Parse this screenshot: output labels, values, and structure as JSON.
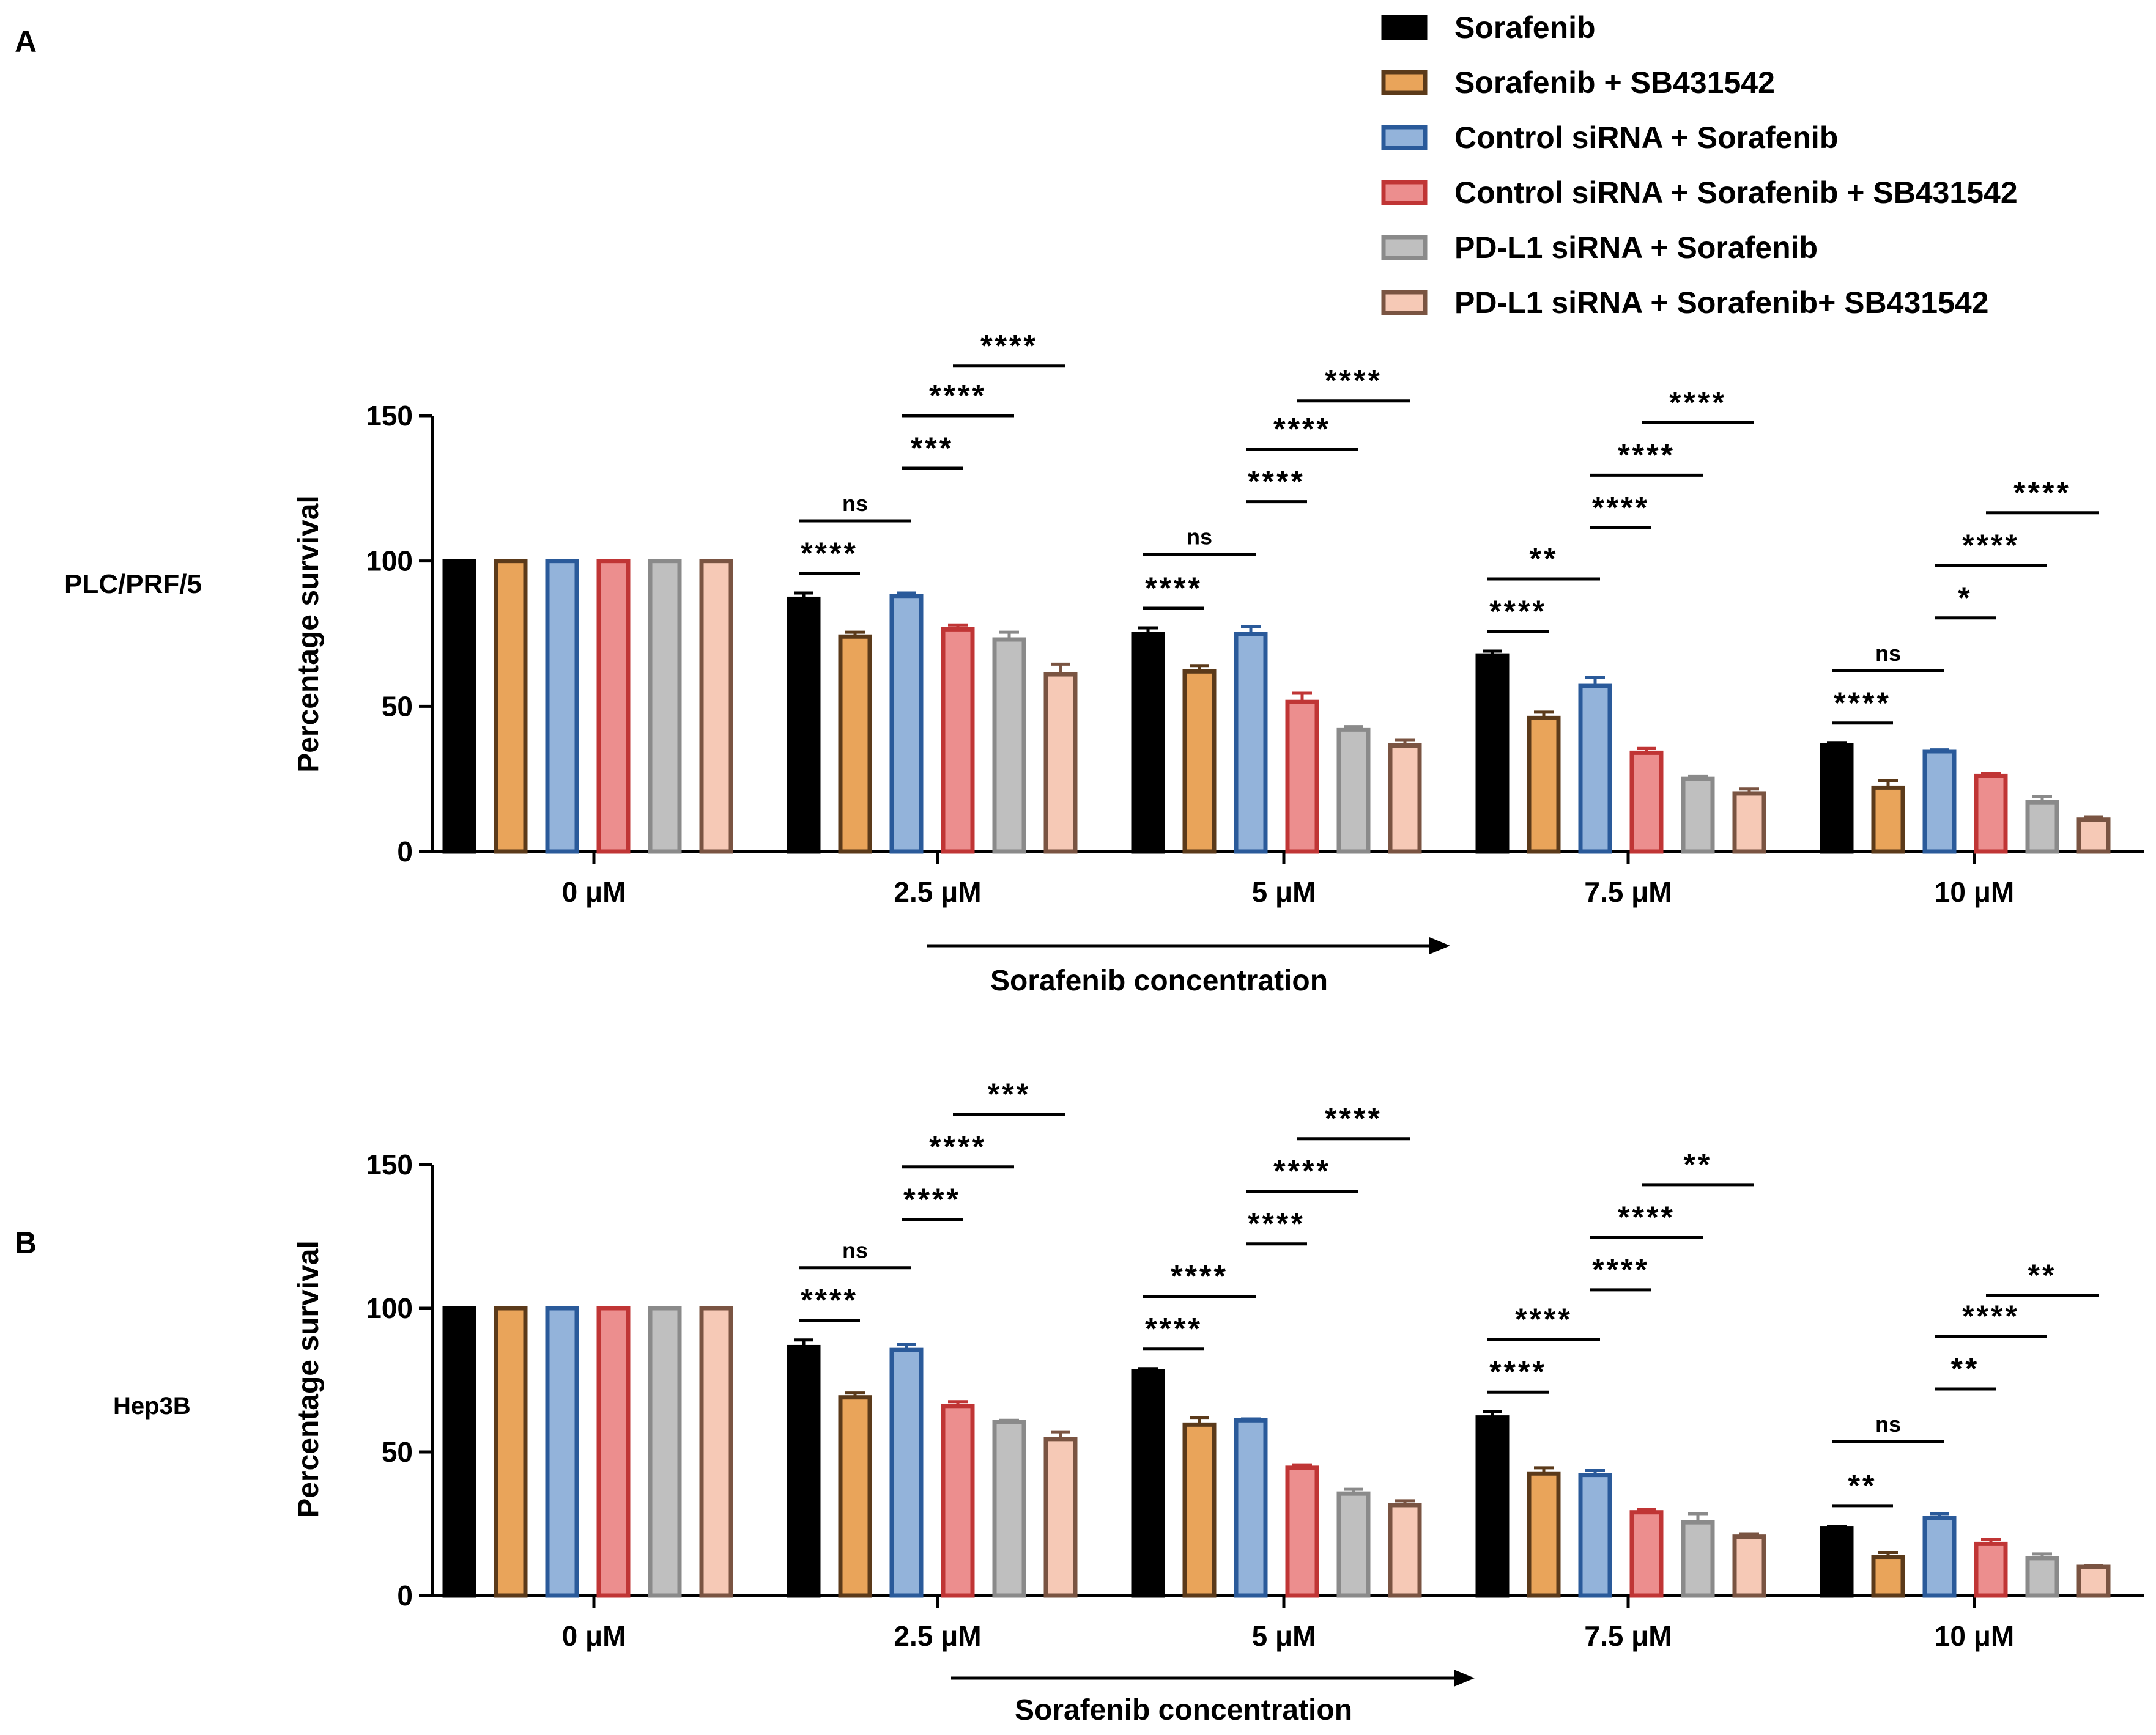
{
  "legend": [
    {
      "label": "Sorafenib",
      "fill": "#000000",
      "stroke": "#000000"
    },
    {
      "label": "Sorafenib + SB431542",
      "fill": "#E9A45A",
      "stroke": "#5b3a1a"
    },
    {
      "label": "Control siRNA + Sorafenib",
      "fill": "#93B3DA",
      "stroke": "#2a5a9a"
    },
    {
      "label": "Control siRNA + Sorafenib + SB431542",
      "fill": "#EC8E8E",
      "stroke": "#c03535"
    },
    {
      "label": "PD-L1 siRNA + Sorafenib",
      "fill": "#BFBFBF",
      "stroke": "#8a8a8a"
    },
    {
      "label": "PD-L1 siRNA + Sorafenib+ SB431542",
      "fill": "#F6C9B6",
      "stroke": "#7a5442"
    }
  ],
  "chart_data": [
    {
      "type": "bar",
      "panel_label": "A",
      "cell_line": "PLC/PRF/5",
      "ylabel": "Percentage survival",
      "xlabel": "Sorafenib concentration",
      "categories": [
        "0 μM",
        "2.5 μM",
        "5 μM",
        "7.5 μM",
        "10 μM"
      ],
      "ylim": [
        0,
        150
      ],
      "yticks": [
        "0",
        "50",
        "100",
        "150"
      ],
      "series": [
        {
          "values": [
            100,
            87,
            75,
            67.5,
            36.5
          ],
          "errors": [
            0,
            2,
            2,
            1.5,
            1
          ]
        },
        {
          "values": [
            100,
            74,
            62,
            46,
            22
          ],
          "errors": [
            0,
            1.5,
            2,
            2,
            2.5
          ]
        },
        {
          "values": [
            100,
            88,
            75,
            57,
            34.5
          ],
          "errors": [
            0,
            1,
            2.5,
            3,
            0.5
          ]
        },
        {
          "values": [
            100,
            76.5,
            51.5,
            34,
            26
          ],
          "errors": [
            0,
            1.5,
            3,
            1.5,
            1
          ]
        },
        {
          "values": [
            100,
            73,
            42,
            25,
            17
          ],
          "errors": [
            0,
            2.5,
            1,
            1,
            2
          ]
        },
        {
          "values": [
            100,
            61,
            36.5,
            20,
            11
          ],
          "errors": [
            0,
            3.5,
            2,
            1.5,
            1
          ]
        }
      ],
      "annotations": [
        {
          "group": 1,
          "from": 0,
          "to": 1,
          "text": "****"
        },
        {
          "group": 1,
          "from": 0,
          "to": 2,
          "text": "ns"
        },
        {
          "group": 1,
          "from": 2,
          "to": 3,
          "text": "***"
        },
        {
          "group": 1,
          "from": 2,
          "to": 4,
          "text": "****"
        },
        {
          "group": 1,
          "from": 3,
          "to": 5,
          "text": "****"
        },
        {
          "group": 2,
          "from": 0,
          "to": 1,
          "text": "****"
        },
        {
          "group": 2,
          "from": 0,
          "to": 2,
          "text": "ns"
        },
        {
          "group": 2,
          "from": 2,
          "to": 3,
          "text": "****"
        },
        {
          "group": 2,
          "from": 2,
          "to": 4,
          "text": "****"
        },
        {
          "group": 2,
          "from": 3,
          "to": 5,
          "text": "****"
        },
        {
          "group": 3,
          "from": 0,
          "to": 1,
          "text": "****"
        },
        {
          "group": 3,
          "from": 0,
          "to": 2,
          "text": "**"
        },
        {
          "group": 3,
          "from": 2,
          "to": 3,
          "text": "****"
        },
        {
          "group": 3,
          "from": 2,
          "to": 4,
          "text": "****"
        },
        {
          "group": 3,
          "from": 3,
          "to": 5,
          "text": "****"
        },
        {
          "group": 4,
          "from": 0,
          "to": 1,
          "text": "****"
        },
        {
          "group": 4,
          "from": 0,
          "to": 2,
          "text": "ns"
        },
        {
          "group": 4,
          "from": 2,
          "to": 3,
          "text": "*"
        },
        {
          "group": 4,
          "from": 2,
          "to": 4,
          "text": "****"
        },
        {
          "group": 4,
          "from": 3,
          "to": 5,
          "text": "****"
        }
      ]
    },
    {
      "type": "bar",
      "panel_label": "B",
      "cell_line": "Hep3B",
      "ylabel": "Percentage survival",
      "xlabel": "Sorafenib concentration",
      "categories": [
        "0 μM",
        "2.5 μM",
        "5 μM",
        "7.5 μM",
        "10 μM"
      ],
      "ylim": [
        0,
        150
      ],
      "yticks": [
        "0",
        "50",
        "100",
        "150"
      ],
      "series": [
        {
          "values": [
            100,
            86.5,
            78,
            62,
            23.5
          ],
          "errors": [
            0,
            2.5,
            1,
            2,
            0.5
          ]
        },
        {
          "values": [
            100,
            69,
            59.5,
            42.5,
            13.5
          ],
          "errors": [
            0,
            1.5,
            2.5,
            2,
            1.5
          ]
        },
        {
          "values": [
            100,
            85.5,
            61,
            42,
            27
          ],
          "errors": [
            0,
            2,
            0.5,
            1.5,
            1.5
          ]
        },
        {
          "values": [
            100,
            66,
            44.5,
            29,
            18
          ],
          "errors": [
            0,
            1.5,
            1,
            1,
            1.5
          ]
        },
        {
          "values": [
            100,
            60.5,
            35.5,
            25.5,
            13
          ],
          "errors": [
            0,
            0.5,
            1.5,
            3,
            1.5
          ]
        },
        {
          "values": [
            100,
            54.5,
            31.5,
            20.5,
            10
          ],
          "errors": [
            0,
            2.5,
            1.5,
            1,
            0.5
          ]
        }
      ],
      "annotations": [
        {
          "group": 1,
          "from": 0,
          "to": 1,
          "text": "****"
        },
        {
          "group": 1,
          "from": 0,
          "to": 2,
          "text": "ns"
        },
        {
          "group": 1,
          "from": 2,
          "to": 3,
          "text": "****"
        },
        {
          "group": 1,
          "from": 2,
          "to": 4,
          "text": "****"
        },
        {
          "group": 1,
          "from": 3,
          "to": 5,
          "text": "***"
        },
        {
          "group": 2,
          "from": 0,
          "to": 1,
          "text": "****"
        },
        {
          "group": 2,
          "from": 0,
          "to": 2,
          "text": "****"
        },
        {
          "group": 2,
          "from": 2,
          "to": 3,
          "text": "****"
        },
        {
          "group": 2,
          "from": 2,
          "to": 4,
          "text": "****"
        },
        {
          "group": 2,
          "from": 3,
          "to": 5,
          "text": "****"
        },
        {
          "group": 3,
          "from": 0,
          "to": 1,
          "text": "****"
        },
        {
          "group": 3,
          "from": 0,
          "to": 2,
          "text": "****"
        },
        {
          "group": 3,
          "from": 2,
          "to": 3,
          "text": "****"
        },
        {
          "group": 3,
          "from": 2,
          "to": 4,
          "text": "****"
        },
        {
          "group": 3,
          "from": 3,
          "to": 5,
          "text": "**"
        },
        {
          "group": 4,
          "from": 0,
          "to": 1,
          "text": "**"
        },
        {
          "group": 4,
          "from": 0,
          "to": 2,
          "text": "ns"
        },
        {
          "group": 4,
          "from": 2,
          "to": 3,
          "text": "**"
        },
        {
          "group": 4,
          "from": 2,
          "to": 4,
          "text": "****"
        },
        {
          "group": 4,
          "from": 3,
          "to": 5,
          "text": "**"
        }
      ]
    }
  ]
}
